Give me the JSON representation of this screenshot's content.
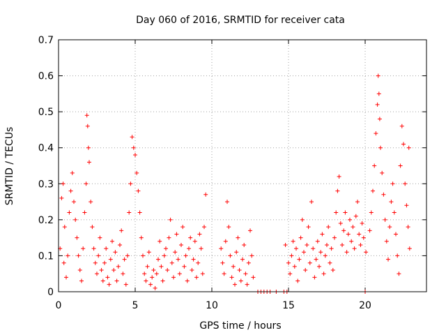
{
  "chart_data": {
    "type": "scatter",
    "title": "Day 060 of 2016, SRMTID for receiver cata",
    "xlabel": "GPS time / hours",
    "ylabel": "SRMTID / TECUs",
    "xlim": [
      0,
      24
    ],
    "ylim": [
      0,
      0.7
    ],
    "xticks": [
      0,
      5,
      10,
      15,
      20
    ],
    "yticks": [
      0,
      0.1,
      0.2,
      0.3,
      0.4,
      0.5,
      0.6,
      0.7
    ],
    "grid": true,
    "marker": "plus",
    "color": "#ff0000",
    "series": [
      {
        "name": "SRMTID",
        "points": [
          [
            0.1,
            0.12
          ],
          [
            0.2,
            0.26
          ],
          [
            0.3,
            0.3
          ],
          [
            0.35,
            0.08
          ],
          [
            0.4,
            0.18
          ],
          [
            0.5,
            0.04
          ],
          [
            0.6,
            0.1
          ],
          [
            0.7,
            0.22
          ],
          [
            0.8,
            0.28
          ],
          [
            0.9,
            0.33
          ],
          [
            1.0,
            0.25
          ],
          [
            1.1,
            0.2
          ],
          [
            1.2,
            0.15
          ],
          [
            1.3,
            0.1
          ],
          [
            1.4,
            0.06
          ],
          [
            1.5,
            0.03
          ],
          [
            1.6,
            0.12
          ],
          [
            1.7,
            0.22
          ],
          [
            1.8,
            0.3
          ],
          [
            1.85,
            0.49
          ],
          [
            1.9,
            0.46
          ],
          [
            1.95,
            0.4
          ],
          [
            2.0,
            0.36
          ],
          [
            2.1,
            0.25
          ],
          [
            2.2,
            0.18
          ],
          [
            2.3,
            0.12
          ],
          [
            2.4,
            0.08
          ],
          [
            2.5,
            0.05
          ],
          [
            2.6,
            0.1
          ],
          [
            2.7,
            0.15
          ],
          [
            2.8,
            0.06
          ],
          [
            2.9,
            0.03
          ],
          [
            3.0,
            0.08
          ],
          [
            3.1,
            0.12
          ],
          [
            3.2,
            0.04
          ],
          [
            3.3,
            0.02
          ],
          [
            3.4,
            0.09
          ],
          [
            3.5,
            0.14
          ],
          [
            3.6,
            0.06
          ],
          [
            3.7,
            0.11
          ],
          [
            3.8,
            0.03
          ],
          [
            3.9,
            0.07
          ],
          [
            4.0,
            0.13
          ],
          [
            4.1,
            0.17
          ],
          [
            4.2,
            0.05
          ],
          [
            4.3,
            0.09
          ],
          [
            4.4,
            0.02
          ],
          [
            4.5,
            0.1
          ],
          [
            4.6,
            0.22
          ],
          [
            4.7,
            0.3
          ],
          [
            4.8,
            0.43
          ],
          [
            4.9,
            0.4
          ],
          [
            5.0,
            0.38
          ],
          [
            5.1,
            0.33
          ],
          [
            5.2,
            0.28
          ],
          [
            5.3,
            0.22
          ],
          [
            5.4,
            0.15
          ],
          [
            5.5,
            0.1
          ],
          [
            5.6,
            0.05
          ],
          [
            5.7,
            0.03
          ],
          [
            5.8,
            0.07
          ],
          [
            5.9,
            0.11
          ],
          [
            6.0,
            0.02
          ],
          [
            6.1,
            0.04
          ],
          [
            6.2,
            0.06
          ],
          [
            6.3,
            0.01
          ],
          [
            6.4,
            0.05
          ],
          [
            6.5,
            0.09
          ],
          [
            6.6,
            0.14
          ],
          [
            6.7,
            0.07
          ],
          [
            6.8,
            0.03
          ],
          [
            6.9,
            0.1
          ],
          [
            7.0,
            0.12
          ],
          [
            7.1,
            0.06
          ],
          [
            7.2,
            0.15
          ],
          [
            7.3,
            0.2
          ],
          [
            7.4,
            0.08
          ],
          [
            7.5,
            0.04
          ],
          [
            7.6,
            0.11
          ],
          [
            7.7,
            0.16
          ],
          [
            7.8,
            0.09
          ],
          [
            7.9,
            0.05
          ],
          [
            8.0,
            0.13
          ],
          [
            8.1,
            0.18
          ],
          [
            8.2,
            0.07
          ],
          [
            8.3,
            0.1
          ],
          [
            8.4,
            0.03
          ],
          [
            8.5,
            0.12
          ],
          [
            8.6,
            0.15
          ],
          [
            8.7,
            0.06
          ],
          [
            8.8,
            0.09
          ],
          [
            8.9,
            0.14
          ],
          [
            9.0,
            0.04
          ],
          [
            9.1,
            0.08
          ],
          [
            9.2,
            0.16
          ],
          [
            9.3,
            0.12
          ],
          [
            9.4,
            0.05
          ],
          [
            9.5,
            0.18
          ],
          [
            9.6,
            0.27
          ],
          [
            10.6,
            0.12
          ],
          [
            10.7,
            0.08
          ],
          [
            10.8,
            0.05
          ],
          [
            10.9,
            0.14
          ],
          [
            11.0,
            0.25
          ],
          [
            11.1,
            0.18
          ],
          [
            11.2,
            0.1
          ],
          [
            11.3,
            0.04
          ],
          [
            11.4,
            0.07
          ],
          [
            11.5,
            0.02
          ],
          [
            11.6,
            0.11
          ],
          [
            11.7,
            0.15
          ],
          [
            11.8,
            0.06
          ],
          [
            11.9,
            0.03
          ],
          [
            12.0,
            0.09
          ],
          [
            12.1,
            0.13
          ],
          [
            12.2,
            0.05
          ],
          [
            12.3,
            0.02
          ],
          [
            12.4,
            0.08
          ],
          [
            12.5,
            0.17
          ],
          [
            12.6,
            0.1
          ],
          [
            12.7,
            0.04
          ],
          [
            13.0,
            0.0
          ],
          [
            13.2,
            0.0
          ],
          [
            13.4,
            0.0
          ],
          [
            13.6,
            0.0
          ],
          [
            13.8,
            0.0
          ],
          [
            14.2,
            0.0
          ],
          [
            14.7,
            0.0
          ],
          [
            14.9,
            0.0
          ],
          [
            14.8,
            0.13
          ],
          [
            15.0,
            0.08
          ],
          [
            15.1,
            0.05
          ],
          [
            15.2,
            0.1
          ],
          [
            15.3,
            0.14
          ],
          [
            15.4,
            0.07
          ],
          [
            15.5,
            0.12
          ],
          [
            15.6,
            0.03
          ],
          [
            15.7,
            0.09
          ],
          [
            15.8,
            0.15
          ],
          [
            15.9,
            0.2
          ],
          [
            16.0,
            0.11
          ],
          [
            16.1,
            0.06
          ],
          [
            16.2,
            0.13
          ],
          [
            16.3,
            0.18
          ],
          [
            16.4,
            0.08
          ],
          [
            16.5,
            0.25
          ],
          [
            16.6,
            0.12
          ],
          [
            16.7,
            0.04
          ],
          [
            16.8,
            0.09
          ],
          [
            16.9,
            0.14
          ],
          [
            17.0,
            0.07
          ],
          [
            17.1,
            0.11
          ],
          [
            17.2,
            0.16
          ],
          [
            17.3,
            0.05
          ],
          [
            17.4,
            0.1
          ],
          [
            17.5,
            0.13
          ],
          [
            17.6,
            0.18
          ],
          [
            17.7,
            0.08
          ],
          [
            17.8,
            0.12
          ],
          [
            17.9,
            0.06
          ],
          [
            18.0,
            0.15
          ],
          [
            18.1,
            0.22
          ],
          [
            18.2,
            0.28
          ],
          [
            18.3,
            0.32
          ],
          [
            18.4,
            0.19
          ],
          [
            18.5,
            0.13
          ],
          [
            18.6,
            0.17
          ],
          [
            18.7,
            0.22
          ],
          [
            18.8,
            0.11
          ],
          [
            18.9,
            0.16
          ],
          [
            19.0,
            0.2
          ],
          [
            19.1,
            0.14
          ],
          [
            19.2,
            0.18
          ],
          [
            19.3,
            0.12
          ],
          [
            19.4,
            0.21
          ],
          [
            19.5,
            0.25
          ],
          [
            19.6,
            0.16
          ],
          [
            19.7,
            0.13
          ],
          [
            19.8,
            0.19
          ],
          [
            19.9,
            0.15
          ],
          [
            20.0,
            0.0
          ],
          [
            20.05,
            0.11
          ],
          [
            20.3,
            0.17
          ],
          [
            20.4,
            0.22
          ],
          [
            20.5,
            0.28
          ],
          [
            20.6,
            0.35
          ],
          [
            20.7,
            0.44
          ],
          [
            20.8,
            0.52
          ],
          [
            20.85,
            0.6
          ],
          [
            20.9,
            0.55
          ],
          [
            20.95,
            0.48
          ],
          [
            21.0,
            0.4
          ],
          [
            21.1,
            0.33
          ],
          [
            21.2,
            0.27
          ],
          [
            21.3,
            0.2
          ],
          [
            21.4,
            0.14
          ],
          [
            21.5,
            0.09
          ],
          [
            21.6,
            0.18
          ],
          [
            21.7,
            0.25
          ],
          [
            21.8,
            0.3
          ],
          [
            21.9,
            0.22
          ],
          [
            22.0,
            0.16
          ],
          [
            22.1,
            0.1
          ],
          [
            22.2,
            0.05
          ],
          [
            22.3,
            0.35
          ],
          [
            22.4,
            0.46
          ],
          [
            22.5,
            0.41
          ],
          [
            22.6,
            0.3
          ],
          [
            22.7,
            0.24
          ],
          [
            22.8,
            0.18
          ],
          [
            22.85,
            0.4
          ],
          [
            22.9,
            0.12
          ]
        ]
      }
    ]
  }
}
